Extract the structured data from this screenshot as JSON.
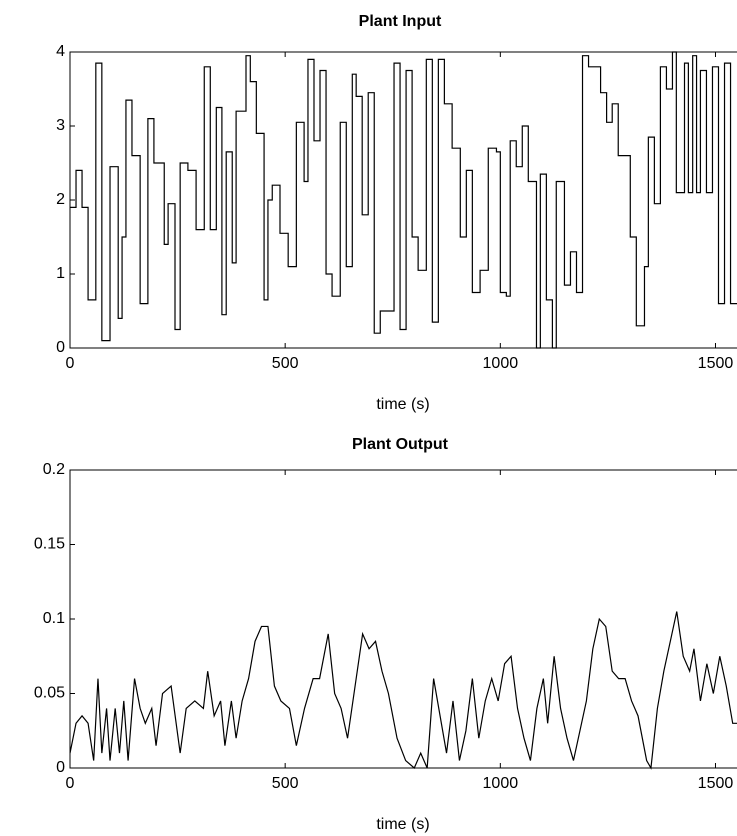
{
  "chart_data": [
    {
      "type": "line",
      "title": "Plant Input",
      "x_label": "time (s)",
      "drawstyle": "steps-post",
      "color": "#000000",
      "x": [
        0,
        14,
        28,
        42,
        60,
        74,
        93,
        112,
        121,
        130,
        144,
        163,
        181,
        195,
        219,
        228,
        244,
        256,
        274,
        293,
        312,
        326,
        340,
        353,
        363,
        377,
        386,
        409,
        419,
        433,
        451,
        460,
        470,
        488,
        507,
        526,
        544,
        553,
        567,
        581,
        595,
        609,
        628,
        642,
        656,
        665,
        679,
        693,
        707,
        721,
        735,
        753,
        767,
        781,
        795,
        809,
        828,
        842,
        856,
        870,
        888,
        907,
        921,
        935,
        953,
        972,
        991,
        1000,
        1014,
        1023,
        1037,
        1051,
        1065,
        1084,
        1093,
        1107,
        1121,
        1130,
        1149,
        1163,
        1177,
        1191,
        1205,
        1233,
        1247,
        1260,
        1274,
        1284,
        1302,
        1316,
        1335,
        1344,
        1358,
        1372,
        1386,
        1400,
        1409,
        1428,
        1437,
        1447,
        1456,
        1465,
        1479,
        1493,
        1507,
        1521,
        1535
      ],
      "values": [
        1.9,
        2.4,
        1.9,
        0.65,
        3.85,
        0.1,
        2.45,
        0.4,
        1.5,
        3.35,
        2.6,
        0.6,
        3.1,
        2.5,
        1.4,
        1.95,
        0.25,
        2.5,
        2.4,
        1.6,
        3.8,
        1.6,
        3.25,
        0.45,
        2.65,
        1.15,
        3.2,
        3.95,
        3.6,
        2.9,
        0.65,
        2.0,
        2.2,
        1.55,
        1.1,
        3.05,
        2.25,
        3.9,
        2.8,
        3.75,
        1.0,
        0.7,
        3.05,
        1.1,
        3.7,
        3.4,
        1.8,
        3.45,
        0.2,
        0.5,
        0.5,
        3.85,
        0.25,
        3.75,
        1.5,
        1.05,
        3.9,
        0.35,
        3.9,
        3.3,
        2.7,
        1.5,
        2.4,
        0.75,
        1.05,
        2.7,
        2.65,
        0.75,
        0.7,
        2.8,
        2.45,
        3.0,
        2.25,
        0.0,
        2.35,
        0.65,
        0.0,
        2.25,
        0.85,
        1.3,
        0.75,
        3.95,
        3.8,
        3.45,
        3.05,
        3.3,
        2.6,
        2.6,
        1.5,
        0.3,
        1.1,
        2.85,
        1.95,
        3.8,
        3.5,
        4.0,
        2.1,
        3.85,
        2.1,
        3.95,
        2.1,
        3.75,
        2.1,
        3.8,
        0.6,
        3.85,
        0.6
      ],
      "xlim": [
        0,
        1550
      ],
      "ylim": [
        0,
        4
      ],
      "xticks": [
        0,
        500,
        1000,
        1500
      ],
      "yticks": [
        0,
        1,
        2,
        3,
        4
      ]
    },
    {
      "type": "line",
      "title": "Plant Output",
      "x_label": "time (s)",
      "drawstyle": "default",
      "color": "#000000",
      "x": [
        0,
        14,
        28,
        42,
        55,
        65,
        74,
        85,
        93,
        105,
        115,
        125,
        135,
        150,
        163,
        175,
        190,
        200,
        215,
        235,
        256,
        270,
        290,
        310,
        320,
        335,
        350,
        360,
        375,
        386,
        400,
        415,
        430,
        445,
        460,
        475,
        490,
        510,
        526,
        545,
        565,
        580,
        600,
        615,
        630,
        645,
        665,
        680,
        695,
        710,
        725,
        740,
        760,
        780,
        800,
        815,
        830,
        845,
        860,
        875,
        890,
        905,
        920,
        935,
        950,
        965,
        980,
        995,
        1010,
        1025,
        1040,
        1055,
        1070,
        1085,
        1100,
        1110,
        1125,
        1140,
        1155,
        1170,
        1185,
        1200,
        1215,
        1230,
        1245,
        1260,
        1275,
        1290,
        1305,
        1320,
        1340,
        1350,
        1365,
        1380,
        1395,
        1410,
        1425,
        1440,
        1450,
        1465,
        1480,
        1495,
        1510,
        1525,
        1540,
        1550
      ],
      "values": [
        0.01,
        0.03,
        0.035,
        0.03,
        0.005,
        0.06,
        0.01,
        0.04,
        0.005,
        0.04,
        0.01,
        0.045,
        0.005,
        0.06,
        0.04,
        0.03,
        0.04,
        0.015,
        0.05,
        0.055,
        0.01,
        0.04,
        0.045,
        0.04,
        0.065,
        0.035,
        0.045,
        0.015,
        0.045,
        0.02,
        0.045,
        0.06,
        0.085,
        0.095,
        0.095,
        0.055,
        0.045,
        0.04,
        0.015,
        0.04,
        0.06,
        0.06,
        0.09,
        0.05,
        0.04,
        0.02,
        0.06,
        0.09,
        0.08,
        0.085,
        0.065,
        0.05,
        0.02,
        0.005,
        0,
        0.01,
        0,
        0.06,
        0.035,
        0.01,
        0.045,
        0.005,
        0.025,
        0.06,
        0.02,
        0.045,
        0.06,
        0.045,
        0.07,
        0.075,
        0.04,
        0.02,
        0.005,
        0.04,
        0.06,
        0.03,
        0.075,
        0.04,
        0.02,
        0.005,
        0.025,
        0.045,
        0.08,
        0.1,
        0.095,
        0.065,
        0.06,
        0.06,
        0.045,
        0.035,
        0.005,
        0,
        0.04,
        0.065,
        0.085,
        0.105,
        0.075,
        0.065,
        0.08,
        0.045,
        0.07,
        0.05,
        0.075,
        0.055,
        0.03,
        0.03
      ],
      "xlim": [
        0,
        1550
      ],
      "ylim": [
        0,
        0.2
      ],
      "xticks": [
        0,
        500,
        1000,
        1500
      ],
      "yticks": [
        0,
        0.05,
        0.1,
        0.15,
        0.2
      ]
    }
  ]
}
